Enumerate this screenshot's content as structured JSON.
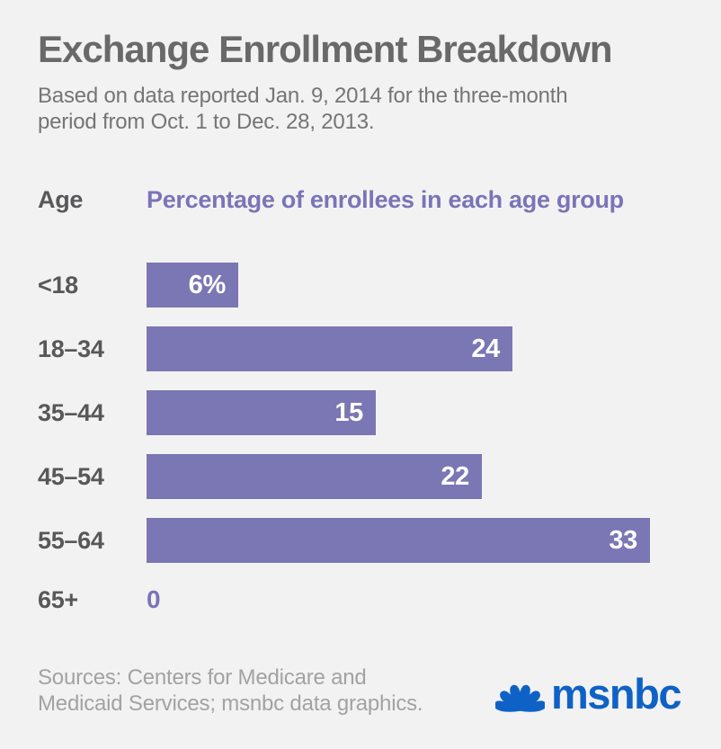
{
  "header": {
    "title": "Exchange Enrollment Breakdown",
    "subtitle_line1": "Based on data reported Jan. 9, 2014 for the three-month",
    "subtitle_line2": "period from Oct. 1 to Dec. 28, 2013."
  },
  "table_header": {
    "age_label": "Age",
    "value_label": "Percentage of enrollees in each age group"
  },
  "chart_data": {
    "type": "bar",
    "orientation": "horizontal",
    "title": "Exchange Enrollment Breakdown",
    "categories": [
      "<18",
      "18–34",
      "35–44",
      "45–54",
      "55–64",
      "65+"
    ],
    "values": [
      6,
      24,
      15,
      22,
      33,
      0
    ],
    "value_display": [
      "6%",
      "24",
      "15",
      "22",
      "33",
      "0"
    ],
    "xlabel": "Percentage of enrollees in each age group",
    "ylabel": "Age",
    "xlim": [
      0,
      33
    ],
    "grid": false,
    "legend": false,
    "bar_color": "#7a77b4",
    "value_label_color": "#ffffff"
  },
  "footer": {
    "sources_line1": "Sources: Centers for Medicare and",
    "sources_line2": "Medicaid Services; msnbc data graphics.",
    "brand": "msnbc"
  },
  "colors": {
    "background": "#f3f2f2",
    "bar": "#7a77b4",
    "accent_purple": "#7a74b8",
    "title_gray": "#696969",
    "subtitle_gray": "#757575",
    "label_gray": "#58585a",
    "source_gray": "#a3a2a2",
    "msnbc_blue": "#0f62c5"
  }
}
